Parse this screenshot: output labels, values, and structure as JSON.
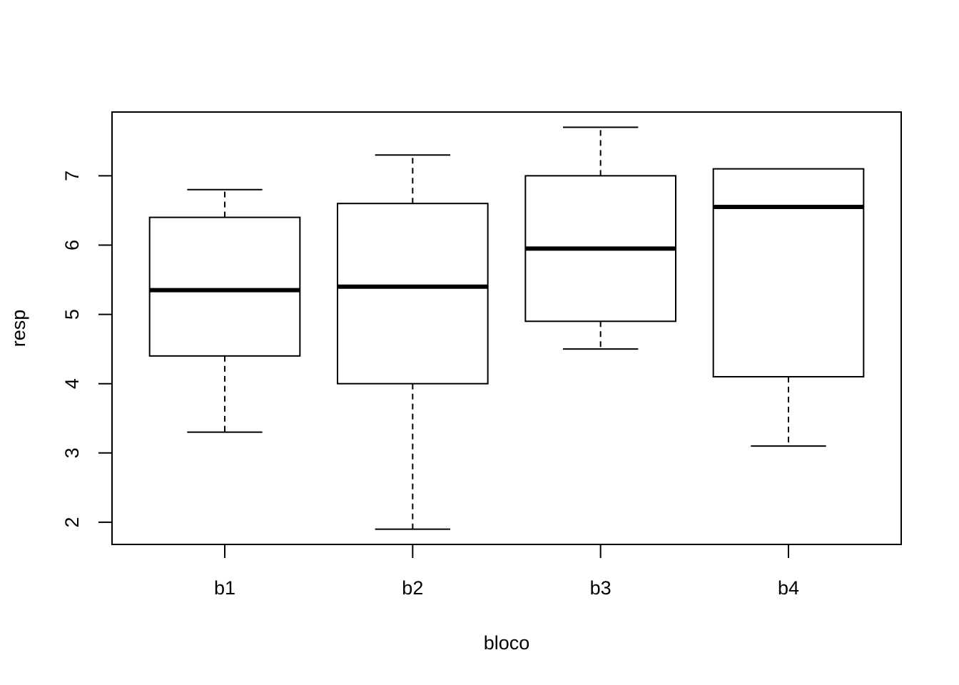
{
  "chart_data": {
    "type": "boxplot",
    "xlabel": "bloco",
    "ylabel": "resp",
    "categories": [
      "b1",
      "b2",
      "b3",
      "b4"
    ],
    "boxes": [
      {
        "category": "b1",
        "whisker_low": 3.3,
        "q1": 4.4,
        "median": 5.35,
        "q3": 6.4,
        "whisker_high": 6.8
      },
      {
        "category": "b2",
        "whisker_low": 1.9,
        "q1": 4.0,
        "median": 5.4,
        "q3": 6.6,
        "whisker_high": 7.3
      },
      {
        "category": "b3",
        "whisker_low": 4.5,
        "q1": 4.9,
        "median": 5.95,
        "q3": 7.0,
        "whisker_high": 7.7
      },
      {
        "category": "b4",
        "whisker_low": 3.1,
        "q1": 4.1,
        "median": 6.55,
        "q3": 7.1,
        "whisker_high": 7.1
      }
    ],
    "y_ticks": [
      "2",
      "3",
      "4",
      "5",
      "6",
      "7"
    ],
    "ylim": [
      1.68,
      7.92
    ],
    "grid": false,
    "legend": "none"
  }
}
